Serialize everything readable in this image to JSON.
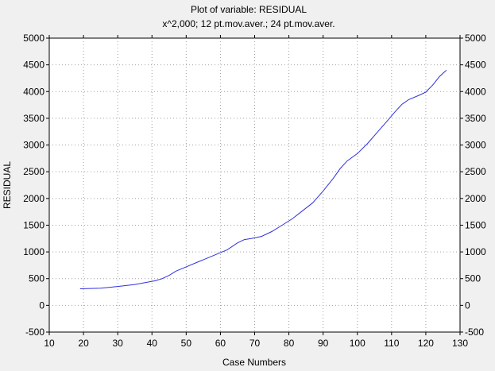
{
  "chart_data": {
    "type": "line",
    "title": "Plot of variable: RESIDUAL",
    "subtitle": "x^2,000; 12 pt.mov.aver.; 24 pt.mov.aver.",
    "xlabel": "Case Numbers",
    "ylabel": "RESIDUAL",
    "xlim": [
      10,
      130
    ],
    "ylim": [
      -500,
      5000
    ],
    "xticks": [
      10,
      20,
      30,
      40,
      50,
      60,
      70,
      80,
      90,
      100,
      110,
      120,
      130
    ],
    "yticks": [
      -500,
      0,
      500,
      1000,
      1500,
      2000,
      2500,
      3000,
      3500,
      4000,
      4500,
      5000
    ],
    "grid": true,
    "right_axis": true,
    "line_color": "#3030e0",
    "series": [
      {
        "x": [
          19,
          25,
          28,
          31,
          35,
          38,
          41,
          43,
          45,
          47,
          50,
          53,
          56,
          59,
          62,
          65,
          67,
          69,
          72,
          75,
          78,
          81,
          84,
          87,
          90,
          93,
          95,
          97,
          100,
          103,
          106,
          109,
          111,
          113,
          115,
          118,
          120,
          122,
          124,
          126
        ],
        "values": [
          310,
          320,
          340,
          360,
          390,
          425,
          460,
          500,
          560,
          640,
          720,
          800,
          880,
          960,
          1040,
          1170,
          1230,
          1250,
          1290,
          1380,
          1500,
          1620,
          1770,
          1920,
          2140,
          2380,
          2560,
          2700,
          2840,
          3030,
          3250,
          3470,
          3620,
          3760,
          3850,
          3930,
          3990,
          4120,
          4280,
          4400
        ]
      }
    ]
  }
}
